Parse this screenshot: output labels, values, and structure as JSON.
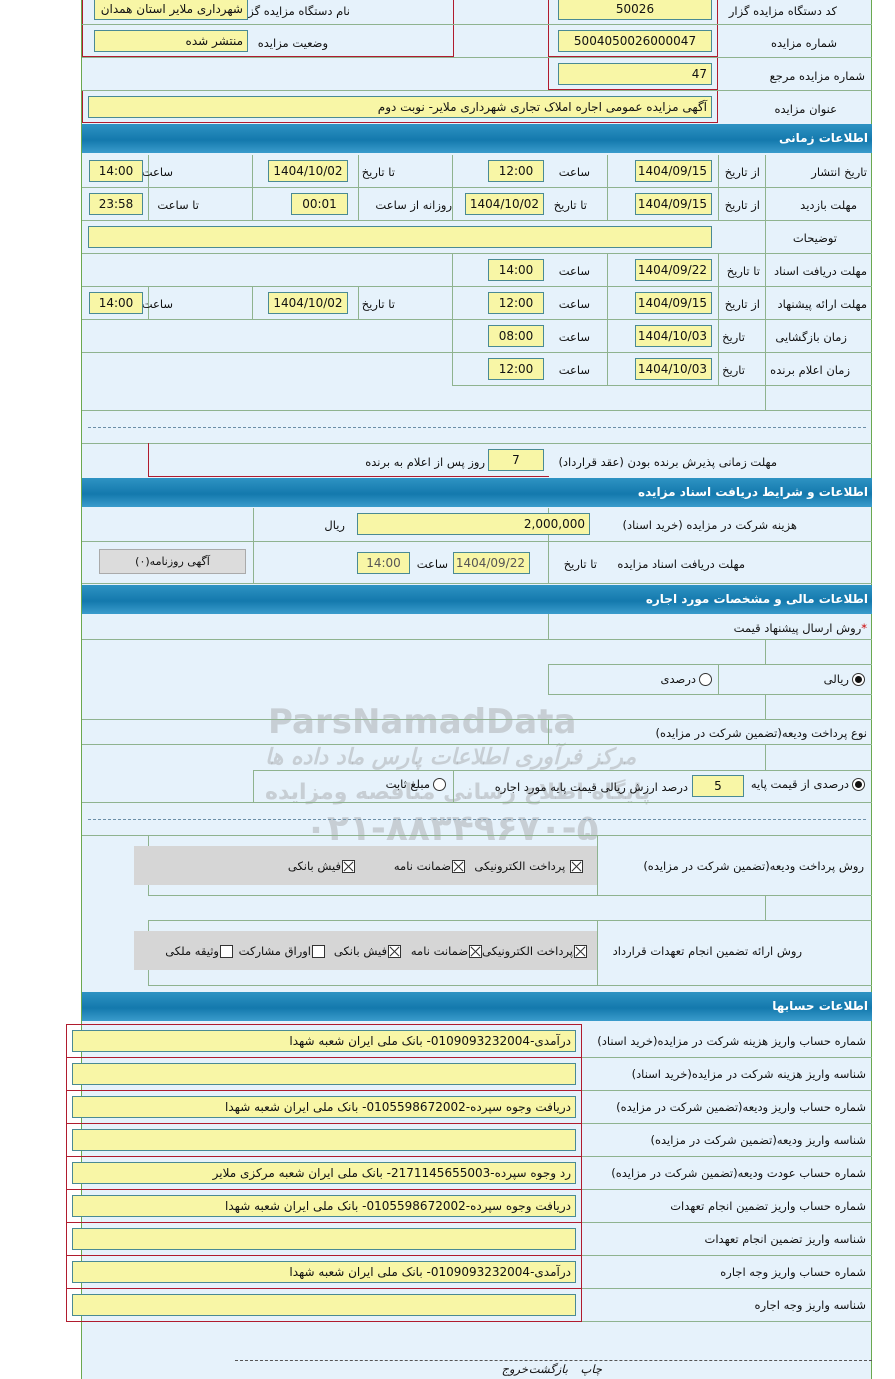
{
  "general": {
    "org_code_label": "کد دستگاه مزایده گزار",
    "org_code": "50026",
    "org_name_label": "نام دستگاه مزایده گزار",
    "org_name": "شهرداری ملایر استان همدان",
    "auction_no_label": "شماره مزایده",
    "auction_no": "5004050026000047",
    "status_label": "وضعیت مزایده",
    "status": "منتشر شده",
    "ref_no_label": "شماره مزایده مرجع",
    "ref_no": "47",
    "title_label": "عنوان مزایده",
    "title": "آگهی مزایده عمومی اجاره املاک تجاری شهرداری ملایر- نوبت دوم"
  },
  "time": {
    "header": "اطلاعات زمانی",
    "from_date": "از تاریخ",
    "to_date": "تا تاریخ",
    "hour": "ساعت",
    "date": "تاریخ",
    "daily_from": "روزانه از ساعت",
    "to_hour": "تا ساعت",
    "publish": {
      "label": "تاریخ انتشار",
      "from": "1404/09/15",
      "from_time": "12:00",
      "to": "1404/10/02",
      "to_time": "14:00"
    },
    "visit": {
      "label": "مهلت بازدید",
      "from": "1404/09/15",
      "to": "1404/10/02",
      "daily_from": "00:01",
      "daily_to": "23:58"
    },
    "notes_label": "توضیحات",
    "notes": "",
    "docs": {
      "label": "مهلت دریافت اسناد",
      "to": "1404/09/22",
      "to_time": "14:00"
    },
    "offer": {
      "label": "مهلت ارائه پیشنهاد",
      "from": "1404/09/15",
      "from_time": "12:00",
      "to": "1404/10/02",
      "to_time": "14:00"
    },
    "opening": {
      "label": "زمان بازگشایی",
      "date": "1404/10/03",
      "time": "08:00"
    },
    "winner": {
      "label": "زمان اعلام برنده",
      "date": "1404/10/03",
      "time": "12:00"
    },
    "accept_label": "مهلت زمانی پذیرش برنده بودن (عقد قرارداد)",
    "accept_days": "7",
    "accept_suffix": "روز پس از اعلام به برنده"
  },
  "docs": {
    "header": "اطلاعات و شرایط دریافت اسناد مزایده",
    "fee_label": "هزینه شرکت در مزایده (خرید اسناد)",
    "fee": "2,000,000",
    "currency": "ریال",
    "deadline_label": "مهلت دریافت اسناد مزایده",
    "to_date_label": "تا تاریخ",
    "to_date": "1404/09/22",
    "hour_label": "ساعت",
    "hour": "14:00",
    "newspaper_button": "آگهی روزنامه(۰)"
  },
  "finance": {
    "header": "اطلاعات مالی و مشخصات مورد اجاره",
    "price_method_label": "روش ارسال پیشنهاد قیمت",
    "required_mark": "*",
    "price_options": [
      {
        "label": "ریالی",
        "checked": true
      },
      {
        "label": "درصدی",
        "checked": false
      }
    ],
    "deposit_type_label": "نوع پرداخت ودیعه(تضمین شرکت در مزایده)",
    "deposit_options": [
      {
        "label": "درصدی از قیمت پایه",
        "checked": true
      },
      {
        "label": "مبلغ ثابت",
        "checked": false
      }
    ],
    "deposit_percent": "5",
    "deposit_percent_text": "درصد ارزش ریالی قیمت پایه مورد اجاره",
    "deposit_method_label": "روش پرداخت ودیعه(تضمین شرکت در مزایده)",
    "deposit_methods": [
      {
        "label": "پرداخت الکترونیکی",
        "checked": true
      },
      {
        "label": "ضمانت نامه",
        "checked": true
      },
      {
        "label": "فیش بانکی",
        "checked": true
      }
    ],
    "guarantee_label": "روش ارائه تضمین انجام تعهدات قرارداد",
    "guarantee_methods": [
      {
        "label": "پرداخت الکترونیکی",
        "checked": true
      },
      {
        "label": "ضمانت نامه",
        "checked": true
      },
      {
        "label": "فیش بانکی",
        "checked": true
      },
      {
        "label": "اوراق مشارکت",
        "checked": false
      },
      {
        "label": "وثیقه ملکی",
        "checked": false
      }
    ]
  },
  "accounts": {
    "header": "اطلاعات حسابها",
    "rows": [
      {
        "label": "شماره حساب واریز هزینه شرکت در مزایده(خرید اسناد)",
        "value": "درآمدی-0109093232004- بانک ملی ایران شعبه شهدا"
      },
      {
        "label": "شناسه واریز هزینه شرکت در مزایده(خرید اسناد)",
        "value": ""
      },
      {
        "label": "شماره حساب واریز ودیعه(تضمین شرکت در مزایده)",
        "value": "دریافت وجوه سپرده-0105598672002- بانک ملی ایران شعبه شهدا"
      },
      {
        "label": "شناسه واریز ودیعه(تضمین شرکت در مزایده)",
        "value": ""
      },
      {
        "label": "شماره حساب عودت ودیعه(تضمین شرکت در مزایده)",
        "value": "رد وجوه سپرده-2171145655003- بانک ملی ایران شعبه مرکزی ملایر"
      },
      {
        "label": "شماره حساب واریز تضمین انجام تعهدات",
        "value": "دریافت وجوه سپرده-0105598672002- بانک ملی ایران شعبه شهدا"
      },
      {
        "label": "شناسه واریز تضمین انجام تعهدات",
        "value": ""
      },
      {
        "label": "شماره حساب واریز وجه اجاره",
        "value": "درآمدی-0109093232004- بانک ملی ایران شعبه شهدا"
      },
      {
        "label": "شناسه واریز وجه اجاره",
        "value": ""
      }
    ]
  },
  "footer": {
    "print": "چاپ",
    "back": "بازگشت",
    "exit": "خروج"
  },
  "watermark": {
    "brand": "ParsNamadData",
    "tagline": "مرکز فرآوری اطلاعات پارس ماد داده ها",
    "subtitle": "پایگاه اطلاع رسانی مناقصه ومزایده",
    "phone": "۰۲۱-۸۸۳۴۹۶۷۰-۵"
  },
  "colors": {
    "header": "#1479ad",
    "field": "#f8f6a6",
    "page": "#e6f2fb",
    "border_red": "#b01c2e"
  }
}
